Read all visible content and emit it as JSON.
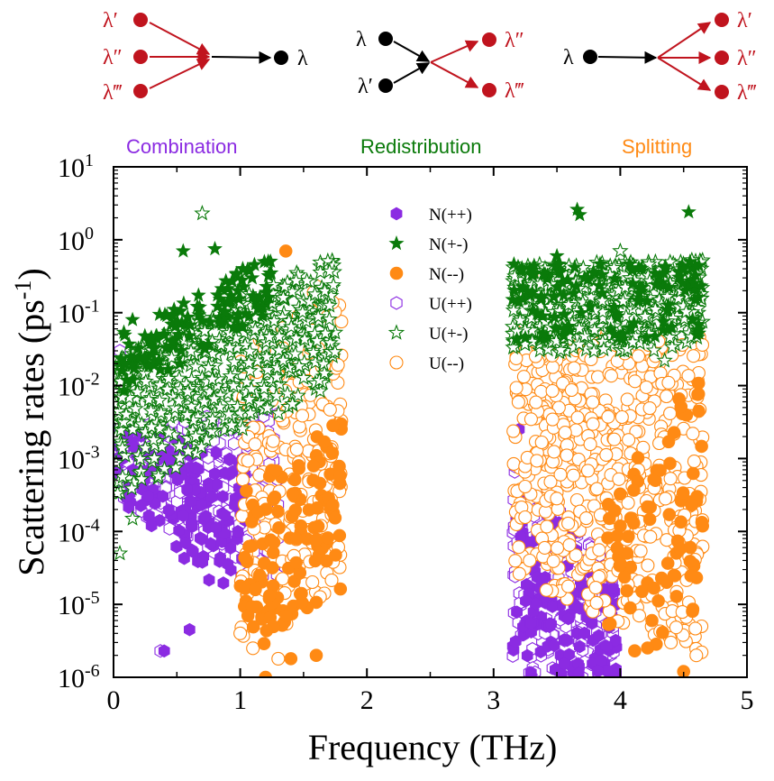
{
  "colors": {
    "n_pp": "#8b2be2",
    "n_pm": "#0a7a0a",
    "n_mm": "#ff8a14",
    "u_pp": "#8b2be2",
    "u_pm": "#0a7a0a",
    "u_mm": "#ff8a14",
    "diagram_red": "#c0141e",
    "diagram_black": "#000000"
  },
  "diagrams": {
    "combination": {
      "label": "Combination",
      "inputs": [
        "λ′",
        "λ″",
        "λ‴"
      ],
      "output": "λ"
    },
    "redistribution": {
      "label": "Redistribution",
      "inputs": [
        "λ",
        "λ′"
      ],
      "outputs": [
        "λ″",
        "λ‴"
      ]
    },
    "splitting": {
      "label": "Splitting",
      "input": "λ",
      "outputs": [
        "λ′",
        "λ″",
        "λ‴"
      ]
    }
  },
  "chart_data": {
    "type": "scatter",
    "xlabel": "Frequency (THz)",
    "ylabel_main": "Scattering rates (ps",
    "ylabel_sup": "-1",
    "ylabel_close": ")",
    "xlim": [
      0,
      5
    ],
    "ylim": [
      1e-06,
      10
    ],
    "yscale": "log",
    "xticks": [
      "0",
      "1",
      "2",
      "3",
      "4",
      "5"
    ],
    "yticks": [
      {
        "base": "10",
        "exp": "1"
      },
      {
        "base": "10",
        "exp": "0"
      },
      {
        "base": "10",
        "exp": "-1"
      },
      {
        "base": "10",
        "exp": "-2"
      },
      {
        "base": "10",
        "exp": "-3"
      },
      {
        "base": "10",
        "exp": "-4"
      },
      {
        "base": "10",
        "exp": "-5"
      },
      {
        "base": "10",
        "exp": "-6"
      }
    ],
    "legend_position": "top-center",
    "grid": false,
    "series": [
      {
        "name": "N(++)",
        "marker": "hexagon",
        "filled": true,
        "groups": [
          {
            "xmin": 0.02,
            "xmax": 1.05,
            "ylow": [
              -3.6,
              -5.2
            ],
            "yhigh": [
              -2.5,
              -3.0
            ],
            "n": 160
          },
          {
            "xmin": 3.15,
            "xmax": 4.0,
            "ylow": [
              -6.0,
              -6.0
            ],
            "yhigh": [
              -3.0,
              -4.8
            ],
            "n": 150
          }
        ],
        "points": [
          [
            0.4,
            2.3e-06
          ],
          [
            0.6,
            4.5e-06
          ],
          [
            0.1,
            0.0003
          ],
          [
            0.3,
            0.00012
          ],
          [
            3.2,
            0.0025
          ],
          [
            3.95,
            1e-06
          ]
        ]
      },
      {
        "name": "N(+-)",
        "marker": "star",
        "filled": true,
        "groups": [
          {
            "xmin": 0.05,
            "xmax": 1.25,
            "ylow": [
              -2.2,
              -1.0
            ],
            "yhigh": [
              -1.3,
              -0.15
            ],
            "n": 120
          },
          {
            "xmin": 3.15,
            "xmax": 4.65,
            "ylow": [
              -1.4,
              -1.4
            ],
            "yhigh": [
              -0.3,
              -0.35
            ],
            "n": 120
          }
        ],
        "points": [
          [
            0.15,
            0.08
          ],
          [
            0.55,
            0.7
          ],
          [
            0.8,
            0.75
          ],
          [
            1.02,
            0.4
          ],
          [
            3.66,
            2.6
          ],
          [
            3.68,
            2.2
          ],
          [
            4.54,
            2.4
          ],
          [
            3.5,
            0.6
          ],
          [
            4.55,
            0.5
          ]
        ]
      },
      {
        "name": "N(--)",
        "marker": "circle",
        "filled": true,
        "groups": [
          {
            "xmin": 1.0,
            "xmax": 1.8,
            "ylow": [
              -5.8,
              -4.8
            ],
            "yhigh": [
              -3.5,
              -2.4
            ],
            "n": 120
          },
          {
            "xmin": 3.9,
            "xmax": 4.65,
            "ylow": [
              -5.8,
              -5.6
            ],
            "yhigh": [
              -3.5,
              -1.7
            ],
            "n": 80
          }
        ],
        "points": [
          [
            1.36,
            0.7
          ],
          [
            1.2,
            1e-06
          ],
          [
            1.4,
            1.8e-06
          ],
          [
            1.6,
            2e-06
          ],
          [
            4.25,
            6e-06
          ],
          [
            4.5,
            1.2e-06
          ]
        ]
      },
      {
        "name": "U(++)",
        "marker": "hexagon",
        "filled": false,
        "groups": [
          {
            "xmin": 0.05,
            "xmax": 1.3,
            "ylow": [
              -3.6,
              -4.8
            ],
            "yhigh": [
              -2.6,
              -2.2
            ],
            "n": 260
          },
          {
            "xmin": 3.15,
            "xmax": 3.95,
            "ylow": [
              -6.0,
              -6.0
            ],
            "yhigh": [
              -3.0,
              -4.5
            ],
            "n": 240
          }
        ],
        "points": [
          [
            0.37,
            2.3e-06
          ],
          [
            0.05,
            0.03
          ],
          [
            0.1,
            0.0025
          ],
          [
            3.3,
            1e-06
          ],
          [
            3.7,
            1e-06
          ]
        ]
      },
      {
        "name": "U(+-)",
        "marker": "star",
        "filled": false,
        "groups": [
          {
            "xmin": 0.0,
            "xmax": 1.75,
            "ylow": [
              -3.6,
              -2.0
            ],
            "yhigh": [
              -1.6,
              -0.2
            ],
            "n": 560
          },
          {
            "xmin": 3.15,
            "xmax": 4.65,
            "ylow": [
              -1.6,
              -1.5
            ],
            "yhigh": [
              -0.35,
              -0.25
            ],
            "n": 480
          }
        ],
        "points": [
          [
            0.7,
            2.3
          ],
          [
            0.05,
            5e-05
          ],
          [
            0.15,
            0.00015
          ],
          [
            0.1,
            0.004
          ],
          [
            4.0,
            0.7
          ],
          [
            4.35,
            0.022
          ]
        ]
      },
      {
        "name": "U(--)",
        "marker": "circle",
        "filled": false,
        "groups": [
          {
            "xmin": 1.0,
            "xmax": 1.8,
            "ylow": [
              -5.5,
              -5.0
            ],
            "yhigh": [
              -1.5,
              -0.7
            ],
            "n": 230
          },
          {
            "xmin": 3.15,
            "xmax": 4.65,
            "ylow": [
              -4.6,
              -5.8
            ],
            "yhigh": [
              -1.2,
              -1.3
            ],
            "n": 580
          }
        ],
        "points": [
          [
            1.6,
            0.23
          ],
          [
            1.58,
            0.19
          ],
          [
            1.0,
            4e-06
          ],
          [
            1.1,
            2.5e-06
          ],
          [
            1.3,
            1.8e-06
          ],
          [
            3.3,
            0.32
          ],
          [
            4.15,
            0.38
          ],
          [
            4.4,
            3e-06
          ],
          [
            4.6,
            2e-06
          ],
          [
            4.15,
            7e-06
          ]
        ]
      }
    ]
  }
}
